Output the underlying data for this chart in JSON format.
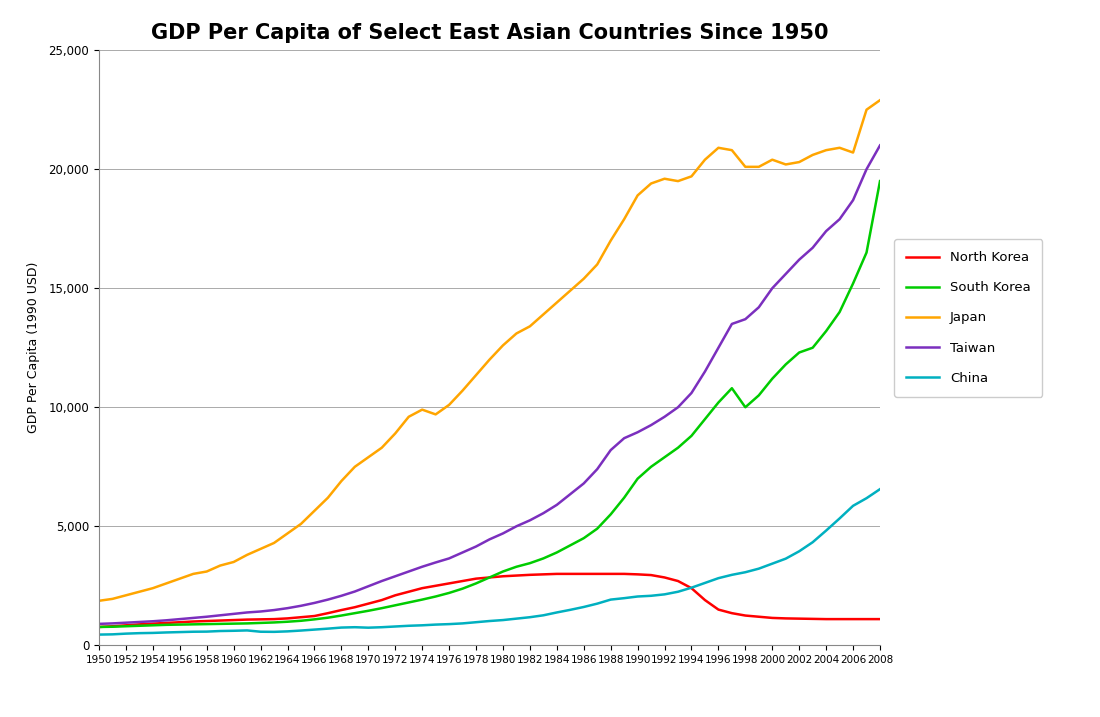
{
  "title": "GDP Per Capita of Select East Asian Countries Since 1950",
  "ylabel": "GDP Per Capita (1990 USD)",
  "ylim": [
    0,
    25000
  ],
  "yticks": [
    0,
    5000,
    10000,
    15000,
    20000,
    25000
  ],
  "years": [
    1950,
    1951,
    1952,
    1953,
    1954,
    1955,
    1956,
    1957,
    1958,
    1959,
    1960,
    1961,
    1962,
    1963,
    1964,
    1965,
    1966,
    1967,
    1968,
    1969,
    1970,
    1971,
    1972,
    1973,
    1974,
    1975,
    1976,
    1977,
    1978,
    1979,
    1980,
    1981,
    1982,
    1983,
    1984,
    1985,
    1986,
    1987,
    1988,
    1989,
    1990,
    1991,
    1992,
    1993,
    1994,
    1995,
    1996,
    1997,
    1998,
    1999,
    2000,
    2001,
    2002,
    2003,
    2004,
    2005,
    2006,
    2007,
    2008
  ],
  "north_korea": [
    770,
    800,
    840,
    880,
    910,
    940,
    970,
    1000,
    1020,
    1040,
    1060,
    1080,
    1090,
    1100,
    1130,
    1180,
    1230,
    1350,
    1480,
    1600,
    1750,
    1900,
    2100,
    2250,
    2400,
    2500,
    2600,
    2700,
    2800,
    2850,
    2900,
    2930,
    2960,
    2980,
    3000,
    3000,
    3000,
    3000,
    3000,
    3000,
    2980,
    2950,
    2850,
    2700,
    2400,
    1900,
    1500,
    1350,
    1250,
    1200,
    1150,
    1130,
    1120,
    1110,
    1100,
    1100,
    1100,
    1100,
    1100
  ],
  "south_korea": [
    770,
    780,
    800,
    820,
    840,
    860,
    870,
    880,
    890,
    900,
    910,
    920,
    940,
    960,
    990,
    1030,
    1090,
    1160,
    1250,
    1350,
    1450,
    1560,
    1680,
    1800,
    1920,
    2050,
    2200,
    2380,
    2600,
    2850,
    3100,
    3300,
    3450,
    3650,
    3900,
    4200,
    4500,
    4900,
    5500,
    6200,
    7000,
    7500,
    7900,
    8300,
    8800,
    9500,
    10200,
    10800,
    10000,
    10500,
    11200,
    11800,
    12300,
    12500,
    13200,
    14000,
    15200,
    16500,
    19500
  ],
  "japan": [
    1870,
    1950,
    2100,
    2250,
    2400,
    2600,
    2800,
    3000,
    3100,
    3350,
    3500,
    3800,
    4050,
    4300,
    4700,
    5100,
    5650,
    6200,
    6900,
    7500,
    7900,
    8300,
    8900,
    9600,
    9900,
    9700,
    10100,
    10700,
    11350,
    12000,
    12600,
    13100,
    13400,
    13900,
    14400,
    14900,
    15400,
    16000,
    17000,
    17900,
    18900,
    19400,
    19600,
    19500,
    19700,
    20400,
    20900,
    20800,
    20100,
    20100,
    20400,
    20200,
    20300,
    20600,
    20800,
    20900,
    20700,
    22500,
    22900
  ],
  "taiwan": [
    900,
    920,
    950,
    980,
    1010,
    1050,
    1100,
    1150,
    1200,
    1260,
    1320,
    1380,
    1420,
    1480,
    1560,
    1660,
    1780,
    1920,
    2080,
    2260,
    2480,
    2700,
    2900,
    3100,
    3300,
    3480,
    3650,
    3900,
    4150,
    4450,
    4700,
    5000,
    5250,
    5550,
    5900,
    6350,
    6800,
    7400,
    8200,
    8700,
    8950,
    9250,
    9600,
    10000,
    10600,
    11500,
    12500,
    13500,
    13700,
    14200,
    15000,
    15600,
    16200,
    16700,
    17400,
    17900,
    18700,
    20000,
    21000
  ],
  "china": [
    450,
    460,
    490,
    510,
    520,
    540,
    555,
    570,
    575,
    600,
    610,
    625,
    570,
    565,
    585,
    620,
    660,
    700,
    745,
    760,
    740,
    760,
    790,
    820,
    840,
    870,
    890,
    920,
    970,
    1020,
    1060,
    1120,
    1180,
    1260,
    1380,
    1490,
    1610,
    1750,
    1920,
    1980,
    2050,
    2080,
    2140,
    2250,
    2420,
    2620,
    2820,
    2960,
    3070,
    3220,
    3430,
    3640,
    3950,
    4330,
    4820,
    5330,
    5860,
    6180,
    6560
  ],
  "colors": {
    "north_korea": "#FF0000",
    "south_korea": "#00CC00",
    "japan": "#FFA500",
    "taiwan": "#7B2FBE",
    "china": "#00B0C0"
  },
  "linewidth": 1.8,
  "background_color": "#FFFFFF",
  "grid_color": "#AAAAAA"
}
